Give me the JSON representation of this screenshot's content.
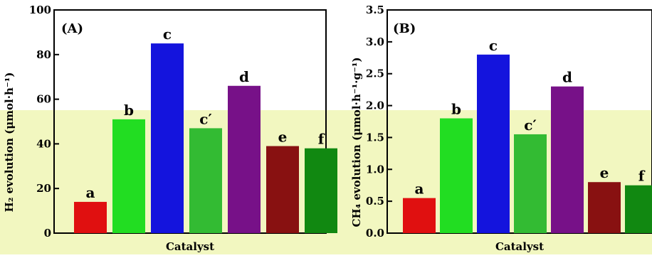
{
  "chart_data": [
    {
      "type": "bar",
      "panel": "(A)",
      "categories": [
        "a",
        "b",
        "c",
        "c′",
        "d",
        "e",
        "f"
      ],
      "values": [
        14,
        51,
        85,
        47,
        66,
        39,
        38
      ],
      "colors": [
        "#e01010",
        "#22dd22",
        "#1414dd",
        "#33bb33",
        "#771188",
        "#881111",
        "#118811"
      ],
      "xlabel": "Catalyst",
      "ylabel": "H₂ evolution (μmol·h⁻¹)",
      "ylim": [
        0,
        100
      ],
      "yticks": [
        0,
        20,
        40,
        60,
        80,
        100
      ],
      "tick_labels": [
        "0",
        "20",
        "40",
        "60",
        "80",
        "100"
      ]
    },
    {
      "type": "bar",
      "panel": "(B)",
      "categories": [
        "a",
        "b",
        "c",
        "c′",
        "d",
        "e",
        "f"
      ],
      "values": [
        0.55,
        1.8,
        2.8,
        1.55,
        2.3,
        0.8,
        0.75
      ],
      "colors": [
        "#e01010",
        "#22dd22",
        "#1414dd",
        "#33bb33",
        "#771188",
        "#881111",
        "#118811"
      ],
      "xlabel": "Catalyst",
      "ylabel": "CH₄ evolution (μmol·h⁻¹·g⁻¹)",
      "ylim": [
        0,
        3.5
      ],
      "yticks": [
        0,
        0.5,
        1.0,
        1.5,
        2.0,
        2.5,
        3.0,
        3.5
      ],
      "tick_labels": [
        "0.0",
        "0.5",
        "1.0",
        "1.5",
        "2.0",
        "2.5",
        "3.0",
        "3.5"
      ]
    }
  ]
}
